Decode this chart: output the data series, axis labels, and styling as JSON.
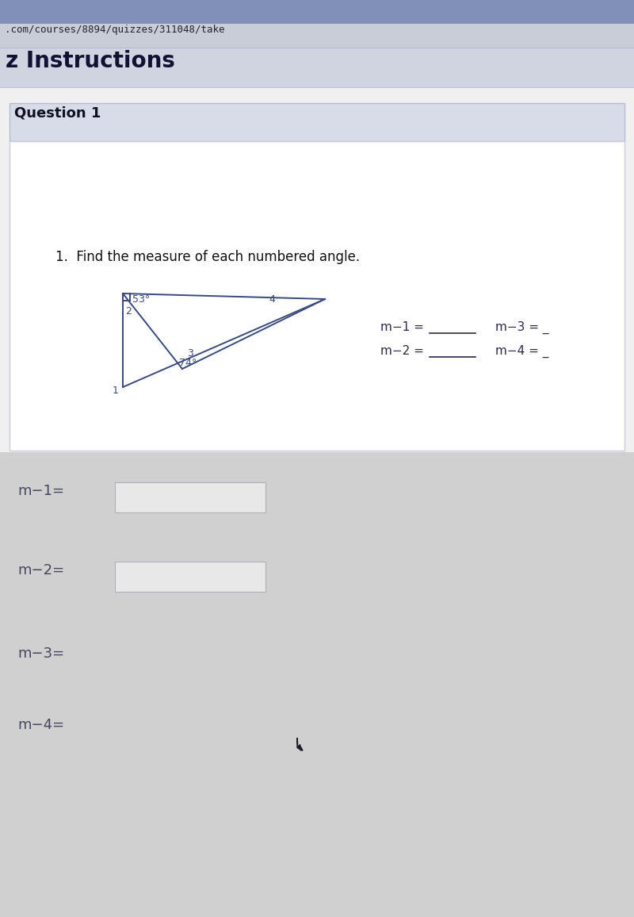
{
  "bg_very_top": "#8090b8",
  "bg_url_bar": "#c8cdd8",
  "bg_header_strip": "#d0d4e0",
  "bg_question_header": "#d8dce8",
  "bg_content": "#f0f0f0",
  "bg_inner_white": "#ffffff",
  "bg_answer_area": "#d0d0d0",
  "bg_input_box": "#e8e8e8",
  "url_text": ".com/courses/8894/quizzes/311048/take",
  "header_text": "z Instructions",
  "question_label": "Question 1",
  "problem_text": "1.  Find the measure of each numbered angle.",
  "angle_53": "53°",
  "angle_74": "74°",
  "label_1": "1",
  "label_2": "2",
  "label_3": "3",
  "label_4": "4",
  "eq_m1": "m−1 =",
  "eq_m2": "m−2 =",
  "eq_m3": "m−3 =",
  "eq_m4": "m−4 =",
  "blank": "______",
  "answer_m1": "m−1=",
  "answer_m2": "m−2=",
  "answer_m3": "m−3=",
  "answer_m4": "m−4=",
  "triangle_color": "#3a4a7a",
  "text_color": "#2a2a4a",
  "answer_text_color": "#454560",
  "url_font_size": 9,
  "header_font_size": 20,
  "q_font_size": 13,
  "problem_font_size": 12,
  "fig_label_font_size": 9,
  "eq_font_size": 11,
  "answer_font_size": 13
}
